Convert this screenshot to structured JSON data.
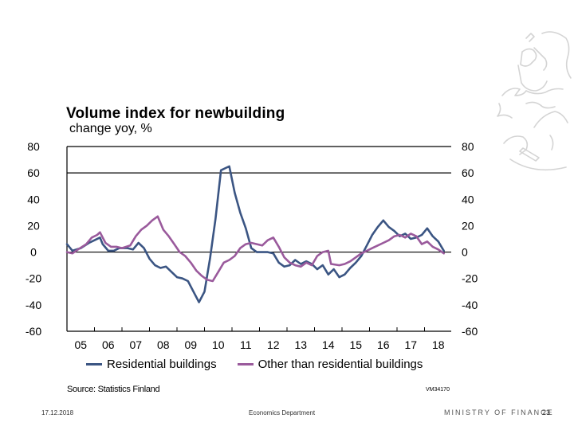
{
  "slide": {
    "source": "Source: Statistics Finland",
    "code": "VM34170",
    "footer": {
      "date": "17.12.2018",
      "department": "Economics Department",
      "ministry": "MINISTRY OF FINANCE",
      "page": "23"
    },
    "logo_icon": "finnish-lion-emblem"
  },
  "chart_data": {
    "type": "line",
    "title": "Volume index for newbuilding",
    "subtitle": "change yoy, %",
    "xlabel": "",
    "ylabel": "change yoy, %",
    "xlim": [
      2005,
      2019
    ],
    "ylim": [
      -60,
      80
    ],
    "yticks": [
      80,
      60,
      40,
      20,
      0,
      -20,
      -40,
      -60
    ],
    "ytick_labels": [
      "80",
      "60",
      "40",
      "20",
      "0",
      "-20",
      "-40",
      "-60"
    ],
    "xtick_labels": [
      "05",
      "06",
      "07",
      "08",
      "09",
      "10",
      "11",
      "12",
      "13",
      "14",
      "15",
      "16",
      "17",
      "18"
    ],
    "gridlines_y": [
      80,
      60,
      0
    ],
    "legend_position": "bottom",
    "colors": {
      "residential": "#3b5583",
      "other": "#9a5a9c"
    },
    "series": [
      {
        "name": "Residential buildings",
        "key": "residential",
        "x": [
          2005.0,
          2005.2,
          2005.5,
          2005.8,
          2006.0,
          2006.2,
          2006.3,
          2006.5,
          2006.7,
          2006.9,
          2007.2,
          2007.4,
          2007.6,
          2007.8,
          2008.0,
          2008.2,
          2008.4,
          2008.6,
          2008.8,
          2009.0,
          2009.2,
          2009.4,
          2009.6,
          2009.8,
          2010.0,
          2010.2,
          2010.4,
          2010.6,
          2010.8,
          2010.9,
          2011.1,
          2011.3,
          2011.5,
          2011.7,
          2011.9,
          2012.1,
          2012.3,
          2012.5,
          2012.7,
          2012.9,
          2013.1,
          2013.3,
          2013.5,
          2013.7,
          2013.9,
          2014.1,
          2014.3,
          2014.5,
          2014.7,
          2014.9,
          2015.1,
          2015.3,
          2015.5,
          2015.7,
          2015.9,
          2016.1,
          2016.3,
          2016.5,
          2016.7,
          2016.9,
          2017.1,
          2017.3,
          2017.5,
          2017.7,
          2017.9,
          2018.1,
          2018.3,
          2018.5,
          2018.7
        ],
        "values": [
          6,
          1,
          3,
          7,
          9,
          11,
          6,
          1,
          1,
          3,
          3,
          2,
          7,
          3,
          -5,
          -10,
          -12,
          -11,
          -15,
          -19,
          -20,
          -22,
          -30,
          -38,
          -30,
          -5,
          25,
          62,
          64,
          65,
          45,
          30,
          18,
          3,
          0,
          0,
          0,
          -1,
          -8,
          -11,
          -10,
          -6,
          -9,
          -7,
          -9,
          -13,
          -10,
          -17,
          -13,
          -19,
          -17,
          -12,
          -8,
          -3,
          5,
          13,
          19,
          24,
          19,
          16,
          12,
          14,
          10,
          11,
          13,
          18,
          12,
          8,
          1
        ]
      },
      {
        "name": "Other than residential buildings",
        "key": "other",
        "x": [
          2005.0,
          2005.2,
          2005.4,
          2005.7,
          2005.9,
          2006.1,
          2006.2,
          2006.4,
          2006.6,
          2006.8,
          2007.0,
          2007.3,
          2007.5,
          2007.7,
          2007.9,
          2008.1,
          2008.3,
          2008.5,
          2008.7,
          2008.9,
          2009.1,
          2009.3,
          2009.5,
          2009.7,
          2009.9,
          2010.1,
          2010.3,
          2010.5,
          2010.7,
          2010.9,
          2011.1,
          2011.3,
          2011.5,
          2011.7,
          2011.9,
          2012.1,
          2012.3,
          2012.5,
          2012.7,
          2012.9,
          2013.1,
          2013.3,
          2013.5,
          2013.7,
          2013.9,
          2014.1,
          2014.3,
          2014.5,
          2014.6,
          2014.9,
          2015.1,
          2015.3,
          2015.5,
          2015.7,
          2015.9,
          2016.1,
          2016.3,
          2016.5,
          2016.7,
          2016.9,
          2017.1,
          2017.3,
          2017.5,
          2017.7,
          2017.9,
          2018.1,
          2018.3,
          2018.5,
          2018.7
        ],
        "values": [
          0,
          -1,
          2,
          6,
          11,
          13,
          15,
          7,
          4,
          4,
          3,
          5,
          12,
          17,
          20,
          24,
          27,
          17,
          12,
          6,
          0,
          -3,
          -8,
          -14,
          -18,
          -21,
          -22,
          -15,
          -8,
          -6,
          -3,
          3,
          6,
          7,
          6,
          5,
          9,
          11,
          4,
          -4,
          -8,
          -10,
          -11,
          -8,
          -10,
          -3,
          0,
          1,
          -9,
          -10,
          -9,
          -7,
          -4,
          -1,
          1,
          3,
          5,
          7,
          9,
          12,
          13,
          11,
          14,
          12,
          6,
          8,
          4,
          2,
          -1
        ]
      }
    ]
  }
}
